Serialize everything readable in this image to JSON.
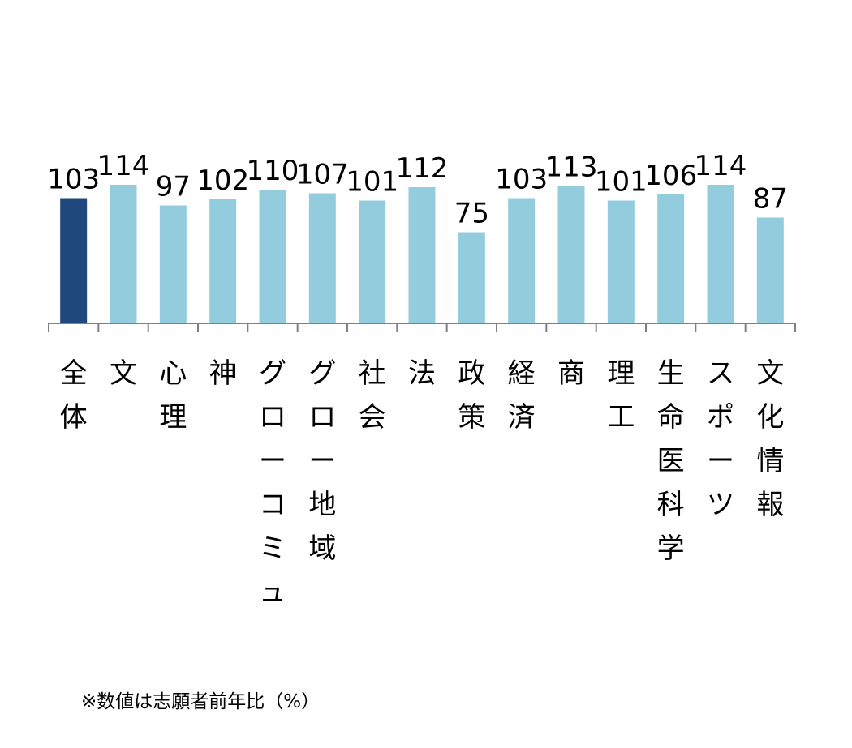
{
  "chart_data": {
    "type": "bar",
    "categories": [
      "全体",
      "文",
      "心理",
      "神",
      "グローコミュ",
      "グロー地域",
      "社会",
      "法",
      "政策",
      "経済",
      "商",
      "理工",
      "生命医科学",
      "スポーツ",
      "文化情報"
    ],
    "values": [
      103,
      114,
      97,
      102,
      110,
      107,
      101,
      112,
      75,
      103,
      113,
      101,
      106,
      114,
      87
    ],
    "data_labels": [
      "103",
      "114",
      "97",
      "102",
      "110",
      "107",
      "101",
      "112",
      "75",
      "103",
      "113",
      "101",
      "106",
      "114",
      "87"
    ],
    "highlight_index": 0,
    "colors": {
      "highlight": "#1F497D",
      "bar": "#93CDDD",
      "axis": "#808080"
    },
    "ylim": [
      0,
      150
    ],
    "grid": false,
    "legend": "none"
  },
  "footnote": "※数値は志願者前年比（%）"
}
